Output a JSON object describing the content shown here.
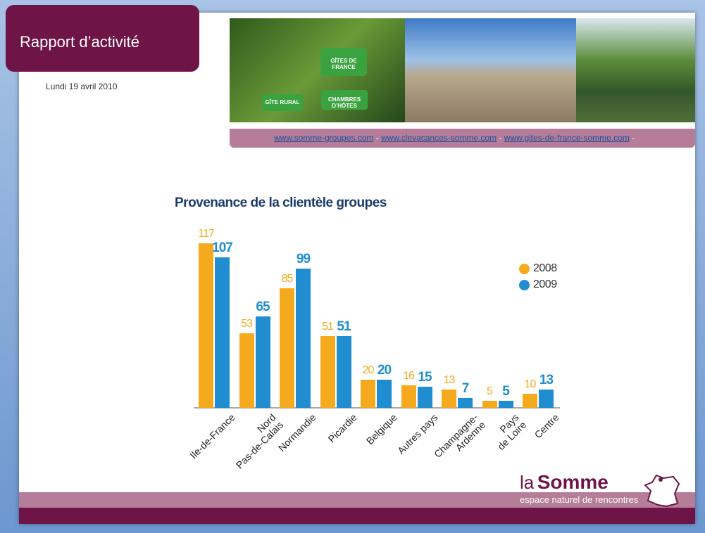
{
  "header": {
    "title": "Rapport d’activité",
    "date": "Lundi 19 avril 2010"
  },
  "banner": {
    "signs": [
      "GÎTES DE FRANCE",
      "GÎTE RURAL",
      "CHAMBRES D’HÔTES"
    ]
  },
  "links": {
    "items": [
      "www.somme-groupes.com",
      "www.clevacances-somme.com",
      "www.gites-de-france-somme.com"
    ],
    "separator": "-"
  },
  "chart_data": {
    "type": "bar",
    "title": "Provenance de la clientèle groupes",
    "categories": [
      "Ile-de-France",
      "Nord\nPas-de-Calais",
      "Normandie",
      "Picardie",
      "Belgique",
      "Autres pays",
      "Champagne-\nArdenne",
      "Pays\nde Loire",
      "Centre"
    ],
    "series": [
      {
        "name": "2008",
        "color": "#f5a91c",
        "values": [
          117,
          53,
          85,
          51,
          20,
          16,
          13,
          5,
          10
        ]
      },
      {
        "name": "2009",
        "color": "#1f8dd0",
        "values": [
          107,
          65,
          99,
          51,
          20,
          15,
          7,
          5,
          13
        ]
      }
    ],
    "legend": "right"
  },
  "footer": {
    "brand_prefix": "la",
    "brand": "Somme",
    "tagline": "espace naturel de rencontres"
  }
}
